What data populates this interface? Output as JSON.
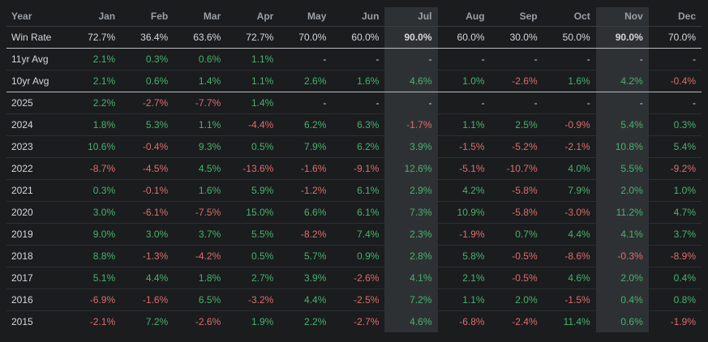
{
  "colors": {
    "positive": "#49b26f",
    "negative": "#e06c6c",
    "highlight_column_bg": "#2e3134"
  },
  "header": {
    "year": "Year",
    "months": [
      "Jan",
      "Feb",
      "Mar",
      "Apr",
      "May",
      "Jun",
      "Jul",
      "Aug",
      "Sep",
      "Oct",
      "Nov",
      "Dec"
    ]
  },
  "highlight_months": [
    6,
    10
  ],
  "rows": [
    {
      "label": "Win Rate",
      "type": "winrate",
      "values": [
        "72.7%",
        "36.4%",
        "63.6%",
        "72.7%",
        "70.0%",
        "60.0%",
        "90.0%",
        "60.0%",
        "30.0%",
        "50.0%",
        "90.0%",
        "70.0%"
      ],
      "bold": [
        6,
        10
      ]
    },
    {
      "label": "11yr Avg",
      "values": [
        "2.1%",
        "0.3%",
        "0.6%",
        "1.1%",
        "-",
        "-",
        "-",
        "-",
        "-",
        "-",
        "-",
        "-"
      ]
    },
    {
      "label": "10yr Avg",
      "values": [
        "2.1%",
        "0.6%",
        "1.4%",
        "1.1%",
        "2.6%",
        "1.6%",
        "4.6%",
        "1.0%",
        "-2.6%",
        "1.6%",
        "4.2%",
        "-0.4%"
      ],
      "sep": true
    },
    {
      "label": "2025",
      "values": [
        "2.2%",
        "-2.7%",
        "-7.7%",
        "1.4%",
        "-",
        "-",
        "-",
        "-",
        "-",
        "-",
        "-",
        "-"
      ]
    },
    {
      "label": "2024",
      "values": [
        "1.8%",
        "5.3%",
        "1.1%",
        "-4.4%",
        "6.2%",
        "6.3%",
        "-1.7%",
        "1.1%",
        "2.5%",
        "-0.9%",
        "5.4%",
        "0.3%"
      ]
    },
    {
      "label": "2023",
      "values": [
        "10.6%",
        "-0.4%",
        "9.3%",
        "0.5%",
        "7.9%",
        "6.2%",
        "3.9%",
        "-1.5%",
        "-5.2%",
        "-2.1%",
        "10.8%",
        "5.4%"
      ]
    },
    {
      "label": "2022",
      "values": [
        "-8.7%",
        "-4.5%",
        "4.5%",
        "-13.6%",
        "-1.6%",
        "-9.1%",
        "12.6%",
        "-5.1%",
        "-10.7%",
        "4.0%",
        "5.5%",
        "-9.2%"
      ]
    },
    {
      "label": "2021",
      "values": [
        "0.3%",
        "-0.1%",
        "1.6%",
        "5.9%",
        "-1.2%",
        "6.1%",
        "2.9%",
        "4.2%",
        "-5.8%",
        "7.9%",
        "2.0%",
        "1.0%"
      ]
    },
    {
      "label": "2020",
      "values": [
        "3.0%",
        "-6.1%",
        "-7.5%",
        "15.0%",
        "6.6%",
        "6.1%",
        "7.3%",
        "10.9%",
        "-5.8%",
        "-3.0%",
        "11.2%",
        "4.7%"
      ]
    },
    {
      "label": "2019",
      "values": [
        "9.0%",
        "3.0%",
        "3.7%",
        "5.5%",
        "-8.2%",
        "7.4%",
        "2.3%",
        "-1.9%",
        "0.7%",
        "4.4%",
        "4.1%",
        "3.7%"
      ]
    },
    {
      "label": "2018",
      "values": [
        "8.8%",
        "-1.3%",
        "-4.2%",
        "0.5%",
        "5.7%",
        "0.9%",
        "2.8%",
        "5.8%",
        "-0.5%",
        "-8.6%",
        "-0.3%",
        "-8.9%"
      ]
    },
    {
      "label": "2017",
      "values": [
        "5.1%",
        "4.4%",
        "1.8%",
        "2.7%",
        "3.9%",
        "-2.6%",
        "4.1%",
        "2.1%",
        "-0.5%",
        "4.6%",
        "2.0%",
        "0.4%"
      ]
    },
    {
      "label": "2016",
      "values": [
        "-6.9%",
        "-1.6%",
        "6.5%",
        "-3.2%",
        "4.4%",
        "-2.5%",
        "7.2%",
        "1.1%",
        "2.0%",
        "-1.5%",
        "0.4%",
        "0.8%"
      ]
    },
    {
      "label": "2015",
      "values": [
        "-2.1%",
        "7.2%",
        "-2.6%",
        "1.9%",
        "2.2%",
        "-2.7%",
        "4.6%",
        "-6.8%",
        "-2.4%",
        "11.4%",
        "0.6%",
        "-1.9%"
      ]
    }
  ]
}
